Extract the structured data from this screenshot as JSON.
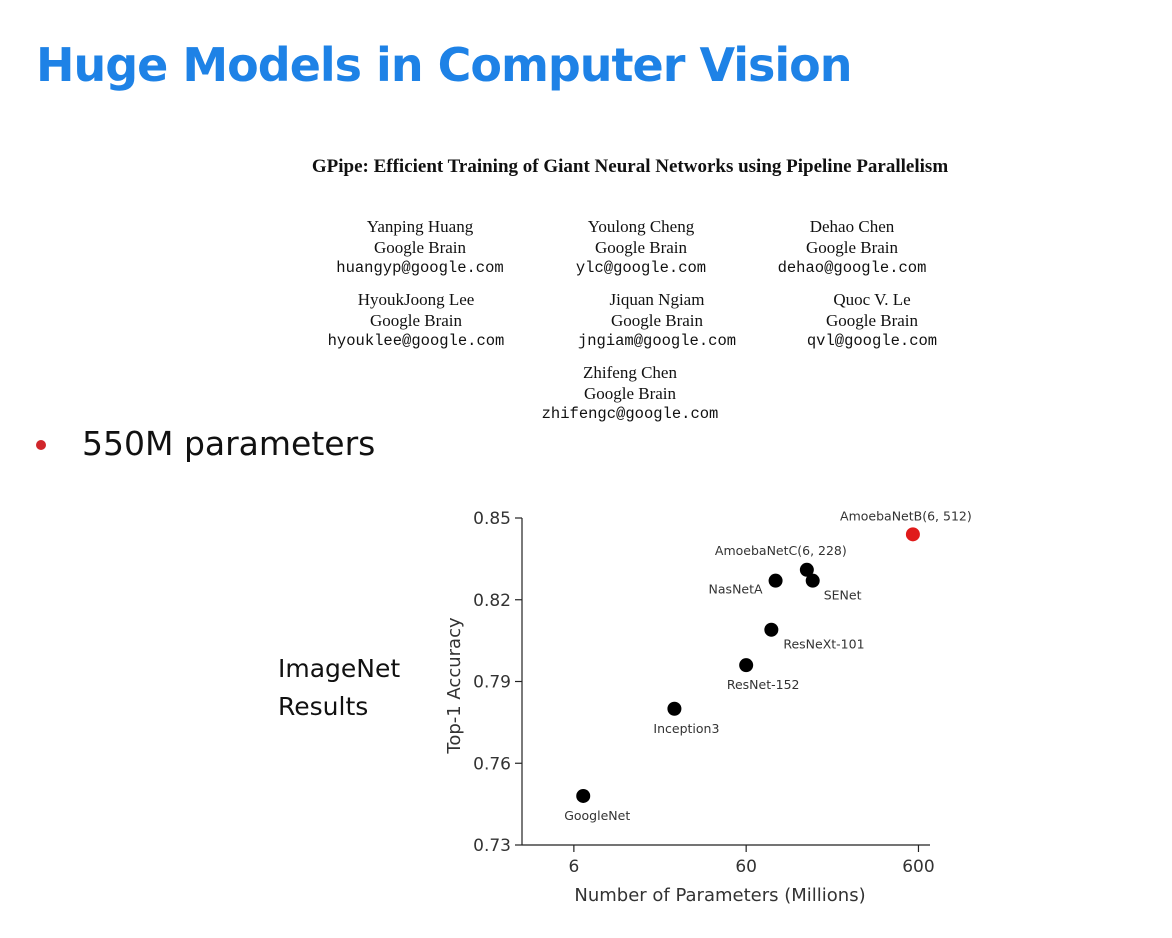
{
  "slide": {
    "title": "Huge Models in Computer Vision",
    "bullet": "550M parameters",
    "side_label": [
      "ImageNet",
      "Results"
    ]
  },
  "paper": {
    "title": "GPipe: Efficient Training of Giant Neural Networks using Pipeline Parallelism",
    "authors": [
      {
        "name": "Yanping Huang",
        "affiliation": "Google Brain",
        "email": "huangyp@google.com"
      },
      {
        "name": "Youlong Cheng",
        "affiliation": "Google Brain",
        "email": "ylc@google.com"
      },
      {
        "name": "Dehao Chen",
        "affiliation": "Google Brain",
        "email": "dehao@google.com"
      },
      {
        "name": "HyoukJoong Lee",
        "affiliation": "Google Brain",
        "email": "hyouklee@google.com"
      },
      {
        "name": "Jiquan Ngiam",
        "affiliation": "Google Brain",
        "email": "jngiam@google.com"
      },
      {
        "name": "Quoc V. Le",
        "affiliation": "Google Brain",
        "email": "qvl@google.com"
      },
      {
        "name": "Zhifeng Chen",
        "affiliation": "Google Brain",
        "email": "zhifengc@google.com"
      }
    ]
  },
  "chart_data": {
    "type": "scatter",
    "xlabel": "Number of Parameters (Millions)",
    "ylabel": "Top-1 Accuracy",
    "x_scale": "log",
    "x_ticks": [
      6,
      60,
      600
    ],
    "xlim": [
      3,
      700
    ],
    "ylim": [
      0.73,
      0.85
    ],
    "y_ticks": [
      "0.73",
      "0.76",
      "0.79",
      "0.82",
      "0.85"
    ],
    "grid": false,
    "colors": {
      "default": "#000000",
      "highlight": "#e01b1b"
    },
    "points": [
      {
        "label": "GoogleNet",
        "x": 6.8,
        "y": 0.748,
        "highlight": false
      },
      {
        "label": "Inception3",
        "x": 23,
        "y": 0.78,
        "highlight": false
      },
      {
        "label": "ResNet-152",
        "x": 60,
        "y": 0.796,
        "highlight": false
      },
      {
        "label": "ResNeXt-101",
        "x": 84,
        "y": 0.809,
        "highlight": false
      },
      {
        "label": "NasNetA",
        "x": 88.9,
        "y": 0.827,
        "highlight": false
      },
      {
        "label": "AmoebaNetC(6, 228)",
        "x": 135,
        "y": 0.831,
        "highlight": false
      },
      {
        "label": "SENet",
        "x": 146,
        "y": 0.827,
        "highlight": false
      },
      {
        "label": "AmoebaNetB(6, 512)",
        "x": 557,
        "y": 0.844,
        "highlight": true
      }
    ]
  }
}
